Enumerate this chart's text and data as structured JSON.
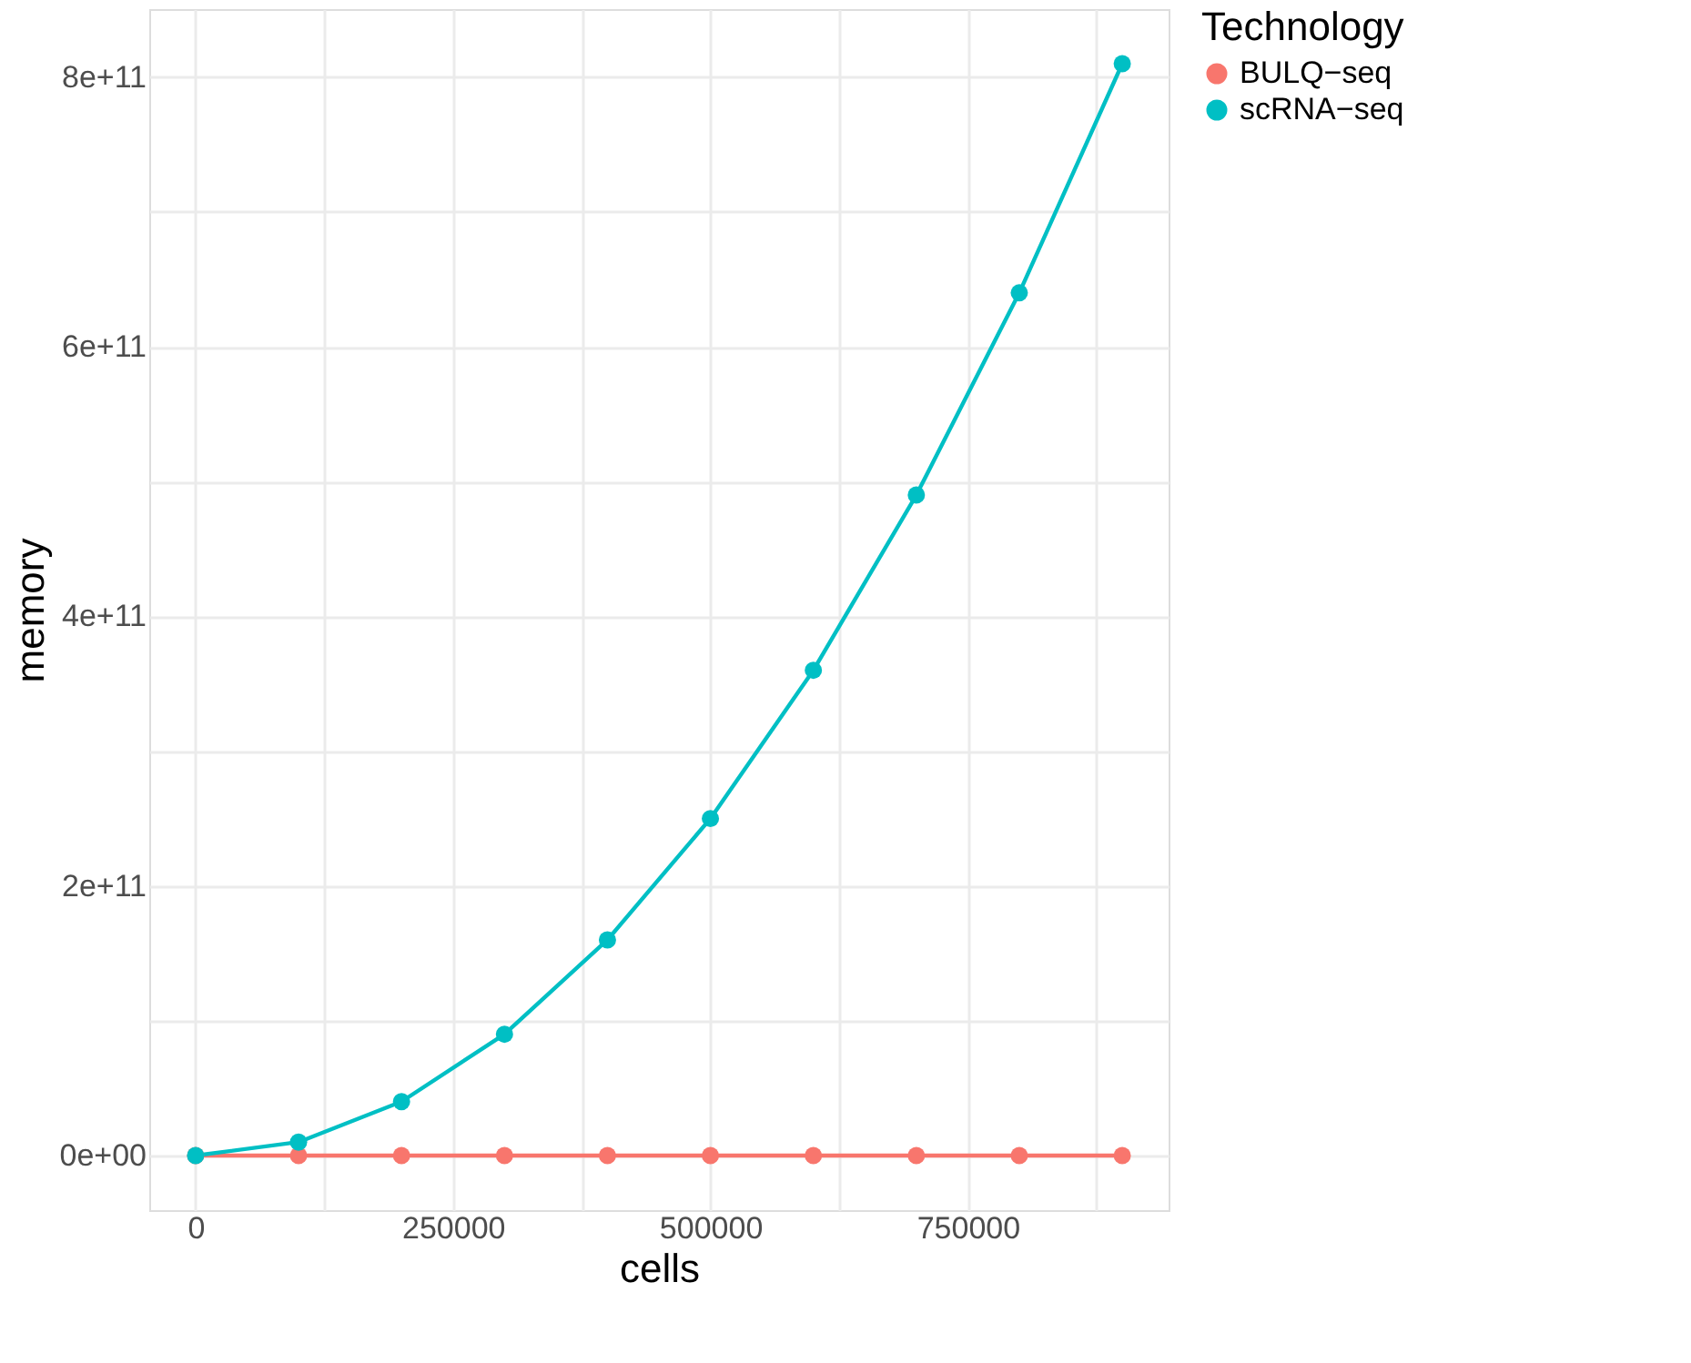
{
  "chart_data": {
    "type": "line",
    "xlabel": "cells",
    "ylabel": "memory",
    "legend_title": "Technology",
    "x": [
      0,
      100000,
      200000,
      300000,
      400000,
      500000,
      600000,
      700000,
      800000,
      900000
    ],
    "series": [
      {
        "name": "BULQ−seq",
        "color": "#f8766d",
        "values": [
          0,
          0,
          0,
          0,
          0,
          0,
          0,
          0,
          0,
          0
        ]
      },
      {
        "name": "scRNA−seq",
        "color": "#00bfc4",
        "values": [
          0,
          10000000000.0,
          40000000000.0,
          90000000000.0,
          160000000000.0,
          250000000000.0,
          360000000000.0,
          490000000000.0,
          640000000000.0,
          810000000000.0
        ]
      }
    ],
    "xlim": [
      -45000,
      945000
    ],
    "xticks": [
      0,
      {
        "value": 125000,
        "label": null
      },
      250000,
      {
        "value": 375000,
        "label": null
      },
      500000,
      {
        "value": 625000,
        "label": null
      },
      750000,
      {
        "value": 875000,
        "label": null
      }
    ],
    "ylim": [
      -40500000000.0,
      850500000000.0
    ],
    "yticks": [
      {
        "value": 0,
        "label": "0e+00"
      },
      {
        "value": 100000000000.0,
        "label": null
      },
      {
        "value": 200000000000.0,
        "label": "2e+11"
      },
      {
        "value": 300000000000.0,
        "label": null
      },
      {
        "value": 400000000000.0,
        "label": "4e+11"
      },
      {
        "value": 500000000000.0,
        "label": null
      },
      {
        "value": 600000000000.0,
        "label": "6e+11"
      },
      {
        "value": 700000000000.0,
        "label": null
      },
      {
        "value": 800000000000.0,
        "label": "8e+11"
      }
    ],
    "grid": true,
    "legend": "right",
    "marker": "circle",
    "line_style": "solid"
  }
}
